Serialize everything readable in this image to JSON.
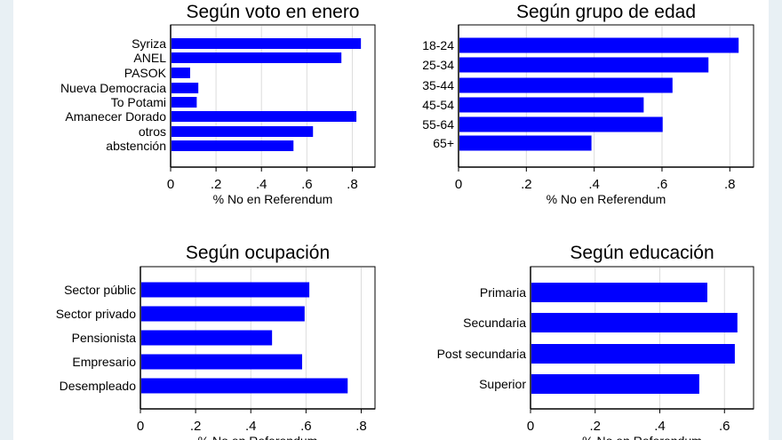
{
  "chart_data": [
    {
      "type": "bar",
      "orientation": "horizontal",
      "title": "Según voto en enero",
      "xlabel": "% No en Referendum",
      "categories": [
        "Syriza",
        "ANEL",
        "PASOK",
        "Nueva Democracia",
        "To Potami",
        "Amanecer Dorado",
        "otros",
        "abstención"
      ],
      "values": [
        0.838,
        0.752,
        0.086,
        0.122,
        0.115,
        0.818,
        0.627,
        0.541
      ],
      "xlim": [
        0,
        0.9
      ],
      "ticks": [
        0,
        0.2,
        0.4,
        0.6,
        0.8
      ],
      "tick_labels": [
        "0",
        ".2",
        ".4",
        ".6",
        ".8"
      ],
      "grid": true,
      "color": "#0000ff"
    },
    {
      "type": "bar",
      "orientation": "horizontal",
      "title": "Según grupo de edad",
      "xlabel": "% No en Referendum",
      "categories": [
        "18-24",
        "25-34",
        "35-44",
        "45-54",
        "55-64",
        "65+"
      ],
      "values": [
        0.826,
        0.737,
        0.631,
        0.546,
        0.602,
        0.392
      ],
      "xlim": [
        0,
        0.87
      ],
      "ticks": [
        0,
        0.2,
        0.4,
        0.6,
        0.8
      ],
      "tick_labels": [
        "0",
        ".2",
        ".4",
        ".6",
        ".8"
      ],
      "grid": true,
      "color": "#0000ff"
    },
    {
      "type": "bar",
      "orientation": "horizontal",
      "title": "Según ocupación",
      "xlabel": "% No en Referendum",
      "categories": [
        "Sector públic",
        "Sector privado",
        "Pensionista",
        "Empresario",
        "Desempleado"
      ],
      "values": [
        0.612,
        0.595,
        0.477,
        0.586,
        0.751
      ],
      "xlim": [
        0,
        0.85
      ],
      "ticks": [
        0,
        0.2,
        0.4,
        0.6,
        0.8
      ],
      "tick_labels": [
        "0",
        ".2",
        ".4",
        ".6",
        ".8"
      ],
      "grid": true,
      "color": "#0000ff"
    },
    {
      "type": "bar",
      "orientation": "horizontal",
      "title": "Según educación",
      "xlabel": "% No en Referendum",
      "categories": [
        "Primaria",
        "Secundaria",
        "Post secundaria",
        "Superior"
      ],
      "values": [
        0.547,
        0.64,
        0.632,
        0.522
      ],
      "xlim": [
        0,
        0.69
      ],
      "ticks": [
        0,
        0.2,
        0.4,
        0.6
      ],
      "tick_labels": [
        "0",
        ".2",
        ".4",
        ".6"
      ],
      "grid": true,
      "color": "#0000ff"
    }
  ]
}
